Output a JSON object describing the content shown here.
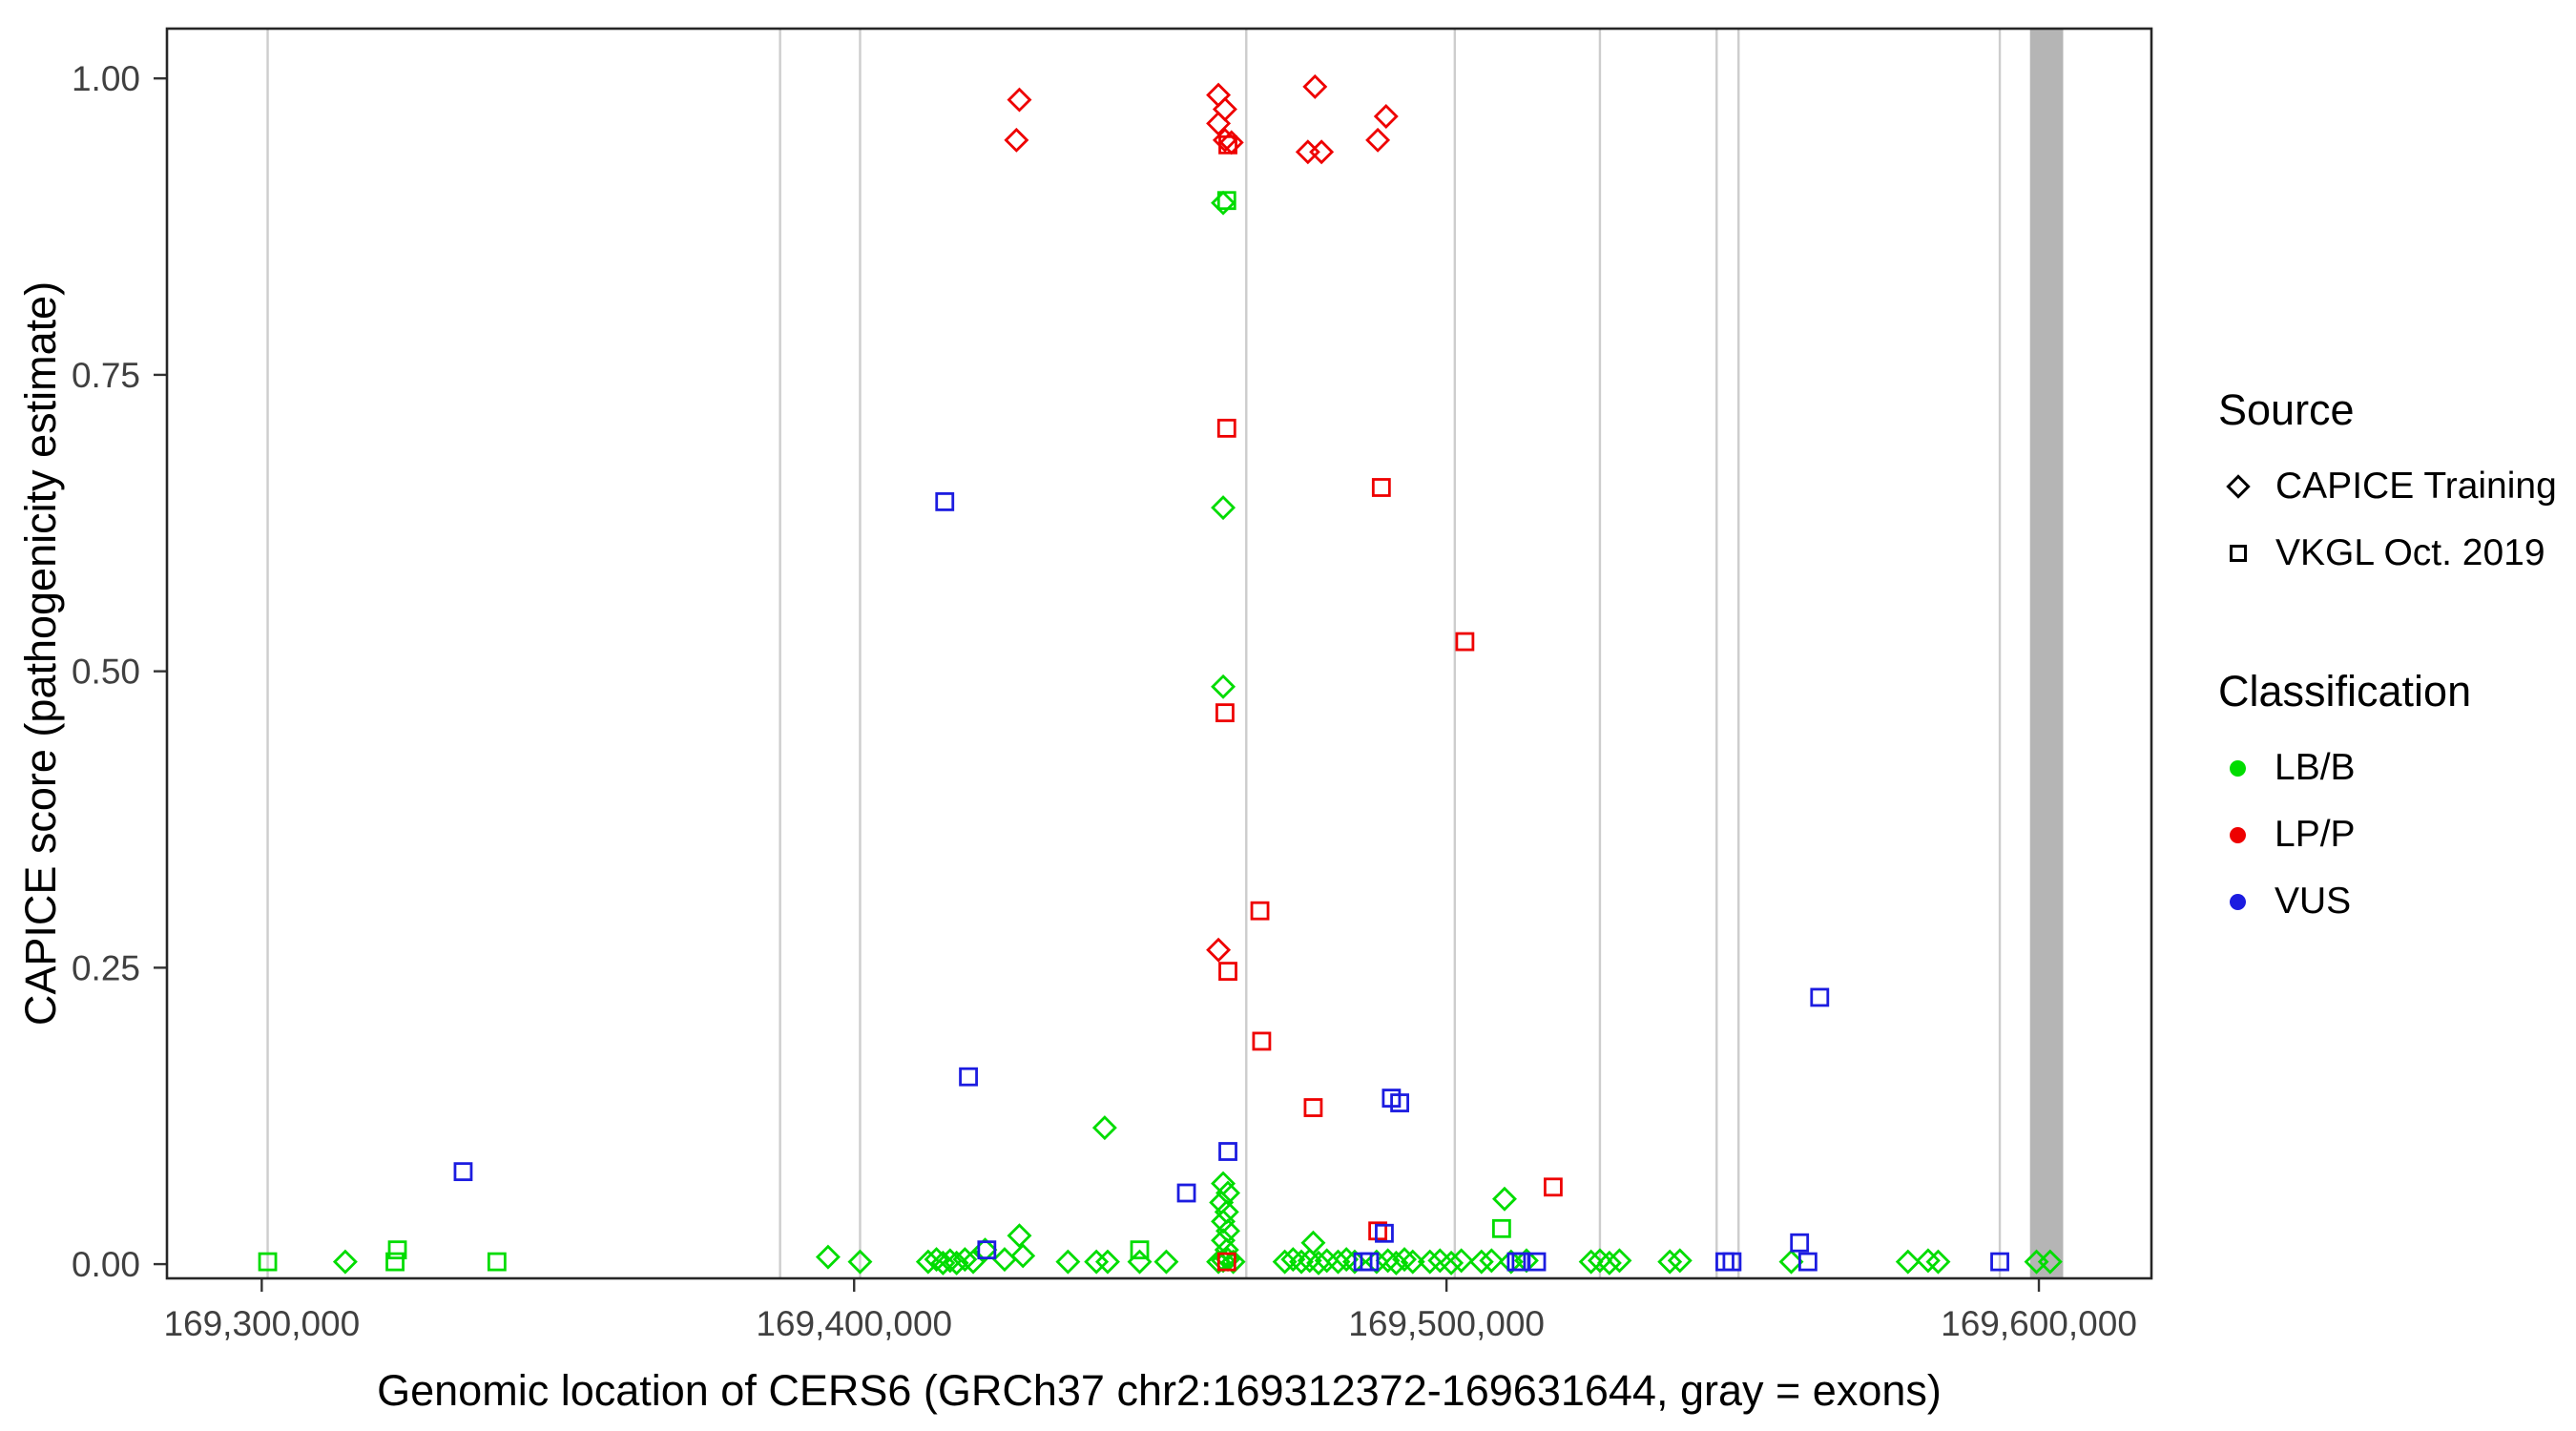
{
  "chart_data": {
    "type": "scatter",
    "title": "",
    "xlabel": "Genomic location of CERS6 (GRCh37 chr2:169312372-169631644, gray = exons)",
    "ylabel": "CAPICE score (pathogenicity estimate)",
    "xlim": [
      169284000,
      169619000
    ],
    "ylim": [
      -0.012,
      1.042
    ],
    "grid": false,
    "legend_position": "right",
    "x_ticks": [
      {
        "value": 169300000,
        "label": "169,300,000"
      },
      {
        "value": 169400000,
        "label": "169,400,000"
      },
      {
        "value": 169500000,
        "label": "169,500,000"
      },
      {
        "value": 169600000,
        "label": "169,600,000"
      }
    ],
    "y_ticks": [
      {
        "value": 0.0,
        "label": "0.00"
      },
      {
        "value": 0.25,
        "label": "0.25"
      },
      {
        "value": 0.5,
        "label": "0.50"
      },
      {
        "value": 0.75,
        "label": "0.75"
      },
      {
        "value": 1.0,
        "label": "1.00"
      }
    ],
    "exon_line_color": "#CDCDCD",
    "exon_region_color": "#B5B5B5",
    "exon_lines": [
      169301000,
      169387500,
      169401000,
      169466200,
      169501400,
      169525900,
      169545600,
      169549300,
      169593400
    ],
    "exon_regions": [
      {
        "start": 169598500,
        "end": 169604100
      }
    ],
    "legend": {
      "source": {
        "title": "Source",
        "items": [
          {
            "shape": "diamond",
            "label": "CAPICE Training"
          },
          {
            "shape": "square",
            "label": "VKGL Oct. 2019"
          }
        ]
      },
      "classification": {
        "title": "Classification",
        "items": [
          {
            "label": "LB/B",
            "color": "#00DC00"
          },
          {
            "label": "LP/P",
            "color": "#EE0000"
          },
          {
            "label": "VUS",
            "color": "#1C1CE0"
          }
        ]
      }
    },
    "series": [
      {
        "id": "lbb-training",
        "name": "LB/B - CAPICE Training",
        "classification": "LB/B",
        "source": "CAPICE Training",
        "shape": "diamond",
        "color": "#00DC00",
        "points": [
          [
            169314100,
            0.002
          ],
          [
            169395600,
            0.006
          ],
          [
            169401000,
            0.002
          ],
          [
            169412500,
            0.002
          ],
          [
            169413900,
            0.004
          ],
          [
            169415000,
            0.001
          ],
          [
            169416200,
            0.003
          ],
          [
            169417300,
            0.001
          ],
          [
            169418700,
            0.004
          ],
          [
            169420100,
            0.002
          ],
          [
            169422100,
            0.012
          ],
          [
            169425400,
            0.004
          ],
          [
            169427900,
            0.024
          ],
          [
            169428500,
            0.007
          ],
          [
            169436100,
            0.002
          ],
          [
            169440900,
            0.002
          ],
          [
            169442800,
            0.002
          ],
          [
            169442300,
            0.115
          ],
          [
            169448200,
            0.002
          ],
          [
            169452700,
            0.002
          ],
          [
            169462300,
            0.068
          ],
          [
            169463100,
            0.06
          ],
          [
            169462000,
            0.052
          ],
          [
            169462900,
            0.044
          ],
          [
            169462300,
            0.036
          ],
          [
            169463100,
            0.028
          ],
          [
            169462300,
            0.02
          ],
          [
            169462900,
            0.012
          ],
          [
            169461500,
            0.002
          ],
          [
            169462300,
            0.003
          ],
          [
            169463100,
            0.004
          ],
          [
            169464000,
            0.002
          ],
          [
            169462300,
            0.895
          ],
          [
            169462300,
            0.638
          ],
          [
            169462300,
            0.487
          ],
          [
            169472700,
            0.002
          ],
          [
            169474100,
            0.004
          ],
          [
            169475500,
            0.002
          ],
          [
            169476900,
            0.003
          ],
          [
            169477500,
            0.018
          ],
          [
            169478400,
            0.001
          ],
          [
            169479800,
            0.003
          ],
          [
            169481700,
            0.002
          ],
          [
            169483100,
            0.004
          ],
          [
            169484500,
            0.002
          ],
          [
            169488200,
            0.002
          ],
          [
            169490100,
            0.003
          ],
          [
            169491500,
            0.001
          ],
          [
            169492900,
            0.004
          ],
          [
            169494300,
            0.002
          ],
          [
            169497200,
            0.002
          ],
          [
            169498900,
            0.003
          ],
          [
            169500800,
            0.001
          ],
          [
            169502500,
            0.003
          ],
          [
            169505900,
            0.002
          ],
          [
            169507600,
            0.003
          ],
          [
            169509800,
            0.055
          ],
          [
            169510900,
            0.002
          ],
          [
            169513500,
            0.003
          ],
          [
            169524400,
            0.002
          ],
          [
            169525900,
            0.003
          ],
          [
            169527500,
            0.001
          ],
          [
            169529200,
            0.003
          ],
          [
            169537700,
            0.002
          ],
          [
            169539400,
            0.003
          ],
          [
            169558200,
            0.002
          ],
          [
            169577900,
            0.002
          ],
          [
            169581300,
            0.003
          ],
          [
            169583000,
            0.002
          ],
          [
            169599600,
            0.002
          ],
          [
            169601900,
            0.002
          ]
        ]
      },
      {
        "id": "lbb-vkgl",
        "name": "LB/B - VKGL Oct. 2019",
        "classification": "LB/B",
        "source": "VKGL Oct. 2019",
        "shape": "square",
        "color": "#00DC00",
        "points": [
          [
            169301000,
            0.002
          ],
          [
            169322500,
            0.002
          ],
          [
            169322900,
            0.012
          ],
          [
            169339700,
            0.002
          ],
          [
            169448200,
            0.012
          ],
          [
            169462900,
            0.897
          ],
          [
            169509300,
            0.03
          ]
        ]
      },
      {
        "id": "lpp-training",
        "name": "LP/P - CAPICE Training",
        "classification": "LP/P",
        "source": "CAPICE Training",
        "shape": "diamond",
        "color": "#EE0000",
        "points": [
          [
            169427400,
            0.948
          ],
          [
            169427900,
            0.982
          ],
          [
            169461500,
            0.986
          ],
          [
            169462600,
            0.974
          ],
          [
            169461500,
            0.962
          ],
          [
            169462600,
            0.948
          ],
          [
            169463700,
            0.946
          ],
          [
            169477800,
            0.993
          ],
          [
            169476600,
            0.938
          ],
          [
            169478900,
            0.938
          ],
          [
            169488400,
            0.948
          ],
          [
            169489800,
            0.968
          ],
          [
            169461500,
            0.265
          ]
        ]
      },
      {
        "id": "lpp-vkgl",
        "name": "LP/P - VKGL Oct. 2019",
        "classification": "LP/P",
        "source": "VKGL Oct. 2019",
        "shape": "square",
        "color": "#EE0000",
        "points": [
          [
            169463100,
            0.944
          ],
          [
            169462900,
            0.705
          ],
          [
            169462600,
            0.465
          ],
          [
            169463100,
            0.247
          ],
          [
            169462900,
            0.002
          ],
          [
            169468500,
            0.298
          ],
          [
            169468800,
            0.188
          ],
          [
            169477500,
            0.132
          ],
          [
            169489000,
            0.655
          ],
          [
            169488400,
            0.028
          ],
          [
            169503100,
            0.525
          ],
          [
            169518000,
            0.065
          ]
        ]
      },
      {
        "id": "vus-vkgl",
        "name": "VUS - VKGL Oct. 2019",
        "classification": "VUS",
        "source": "VKGL Oct. 2019",
        "shape": "square",
        "color": "#1C1CE0",
        "points": [
          [
            169334000,
            0.078
          ],
          [
            169415300,
            0.643
          ],
          [
            169419300,
            0.158
          ],
          [
            169422400,
            0.012
          ],
          [
            169456100,
            0.06
          ],
          [
            169463100,
            0.095
          ],
          [
            169485900,
            0.002
          ],
          [
            169487000,
            0.002
          ],
          [
            169489500,
            0.026
          ],
          [
            169490700,
            0.14
          ],
          [
            169492100,
            0.136
          ],
          [
            169511800,
            0.002
          ],
          [
            169512600,
            0.002
          ],
          [
            169515200,
            0.002
          ],
          [
            169547000,
            0.002
          ],
          [
            169548200,
            0.002
          ],
          [
            169559600,
            0.018
          ],
          [
            169561000,
            0.002
          ],
          [
            169563000,
            0.225
          ],
          [
            169593400,
            0.002
          ]
        ]
      }
    ]
  }
}
